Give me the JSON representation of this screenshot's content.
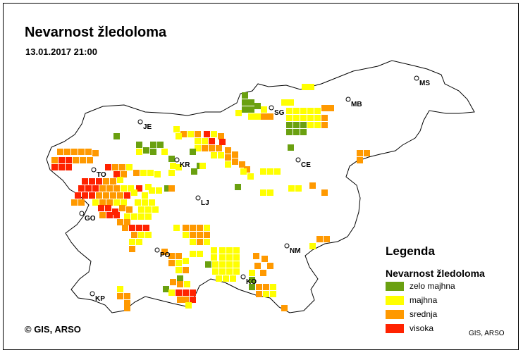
{
  "title": "Nevarnost žledoloma",
  "timestamp": "13.01.2017 21:00",
  "copyright": "© GIS, ARSO",
  "credit": "GIS, ARSO",
  "legend": {
    "title": "Legenda",
    "subtitle": "Nevarnost žledoloma",
    "items": [
      {
        "label": "zelo majhna",
        "color": "#6aa010"
      },
      {
        "label": "majhna",
        "color": "#ffff00"
      },
      {
        "label": "srednja",
        "color": "#ff9900"
      },
      {
        "label": "visoka",
        "color": "#ff2200"
      }
    ]
  },
  "cities": [
    "MS",
    "MB",
    "SG",
    "JE",
    "KR",
    "CE",
    "TO",
    "LJ",
    "GO",
    "NM",
    "PO",
    "KO",
    "KP"
  ],
  "colors": {
    "outline": "#000000",
    "land": "#ffffff"
  }
}
